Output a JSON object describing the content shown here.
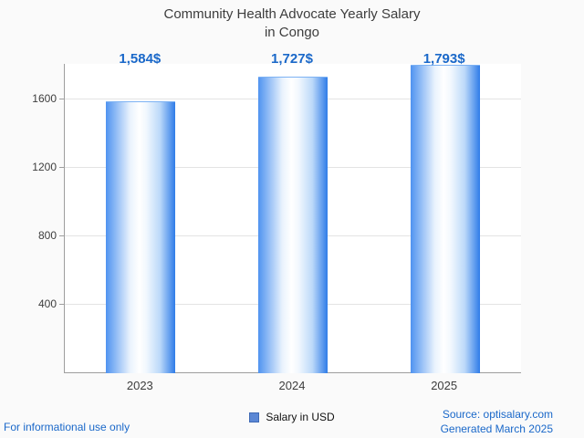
{
  "title": {
    "line1": "Community Health Advocate Yearly Salary",
    "line2": "in Congo"
  },
  "chart_data": {
    "type": "bar",
    "title": "Community Health Advocate Yearly Salary in Congo",
    "categories": [
      "2023",
      "2024",
      "2025"
    ],
    "values": [
      1584,
      1727,
      1793
    ],
    "value_labels": [
      "1,584$",
      "1,727$",
      "1,793$"
    ],
    "xlabel": "",
    "ylabel": "",
    "ylim": [
      0,
      1800
    ],
    "yticks": [
      400,
      800,
      1200,
      1600
    ],
    "grid": true,
    "legend": {
      "label": "Salary in USD",
      "position": "bottom"
    }
  },
  "colors": {
    "accent_blue": "#1a68c9",
    "bar_edge_left": "#4f93f0",
    "bar_edge_right": "#2f7ce8",
    "legend_swatch": "#5b87d5",
    "gridline": "#e4e4e4",
    "axis": "#9e9e9e",
    "background": "#fafafa"
  },
  "footer": {
    "left_note": "For informational use only",
    "source": "Source: optisalary.com",
    "generated": "Generated March 2025"
  }
}
